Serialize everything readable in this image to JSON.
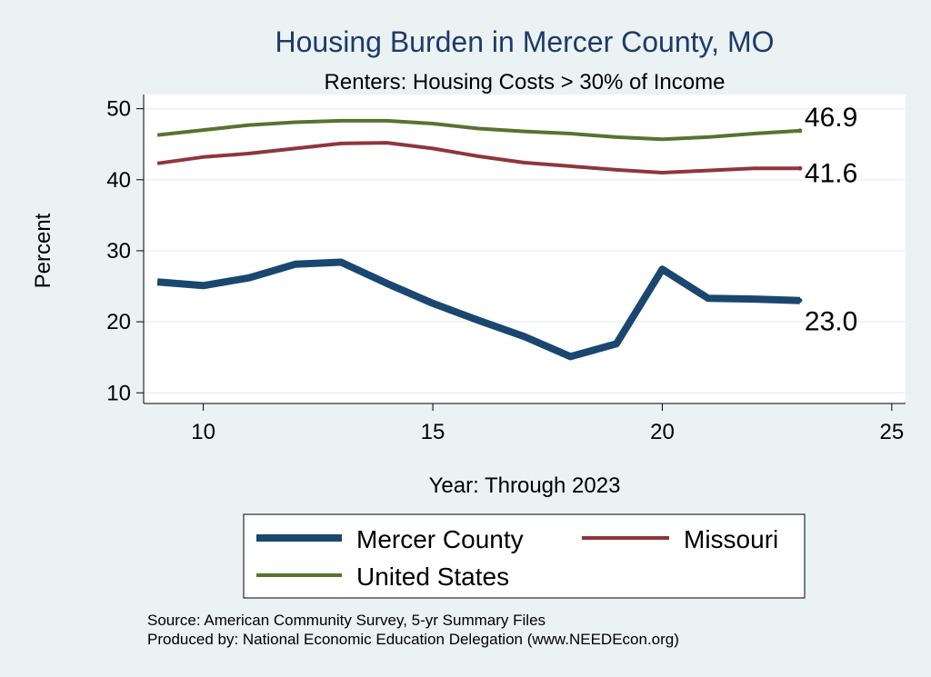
{
  "chart_data": {
    "type": "line",
    "title": "Housing Burden in Mercer County, MO",
    "subtitle": "Renters: Housing Costs > 30% of Income",
    "xlabel": "Year: Through 2023",
    "ylabel": "Percent",
    "xlim": [
      8.7,
      25.3
    ],
    "ylim": [
      8.5,
      52
    ],
    "x_ticks": [
      10,
      15,
      20,
      25
    ],
    "y_ticks": [
      10,
      20,
      30,
      40,
      50
    ],
    "grid": true,
    "legend_position": "bottom",
    "x": [
      9,
      10,
      11,
      12,
      13,
      14,
      15,
      16,
      17,
      18,
      19,
      20,
      21,
      22,
      23
    ],
    "series": [
      {
        "name": "Mercer County",
        "color": "#1a476f",
        "width": 8,
        "values": [
          25.6,
          25.1,
          26.2,
          28.1,
          28.4,
          25.4,
          22.6,
          20.2,
          17.9,
          15.1,
          16.9,
          27.4,
          23.3,
          23.2,
          23.0
        ],
        "end_label": "23.0"
      },
      {
        "name": "Missouri",
        "color": "#90353b",
        "width": 4,
        "values": [
          42.3,
          43.2,
          43.7,
          44.4,
          45.1,
          45.2,
          44.4,
          43.3,
          42.4,
          41.9,
          41.4,
          41.0,
          41.3,
          41.6,
          41.6
        ],
        "end_label": "41.6"
      },
      {
        "name": "United States",
        "color": "#55752f",
        "width": 4,
        "values": [
          46.3,
          47.0,
          47.7,
          48.1,
          48.3,
          48.3,
          47.9,
          47.2,
          46.8,
          46.5,
          46.0,
          45.7,
          46.0,
          46.5,
          46.9
        ],
        "end_label": "46.9"
      }
    ]
  },
  "footer": {
    "source": "Source: American Community Survey, 5-yr Summary Files",
    "produced": "Produced by: National Economic Education Delegation (www.NEEDEcon.org)"
  }
}
